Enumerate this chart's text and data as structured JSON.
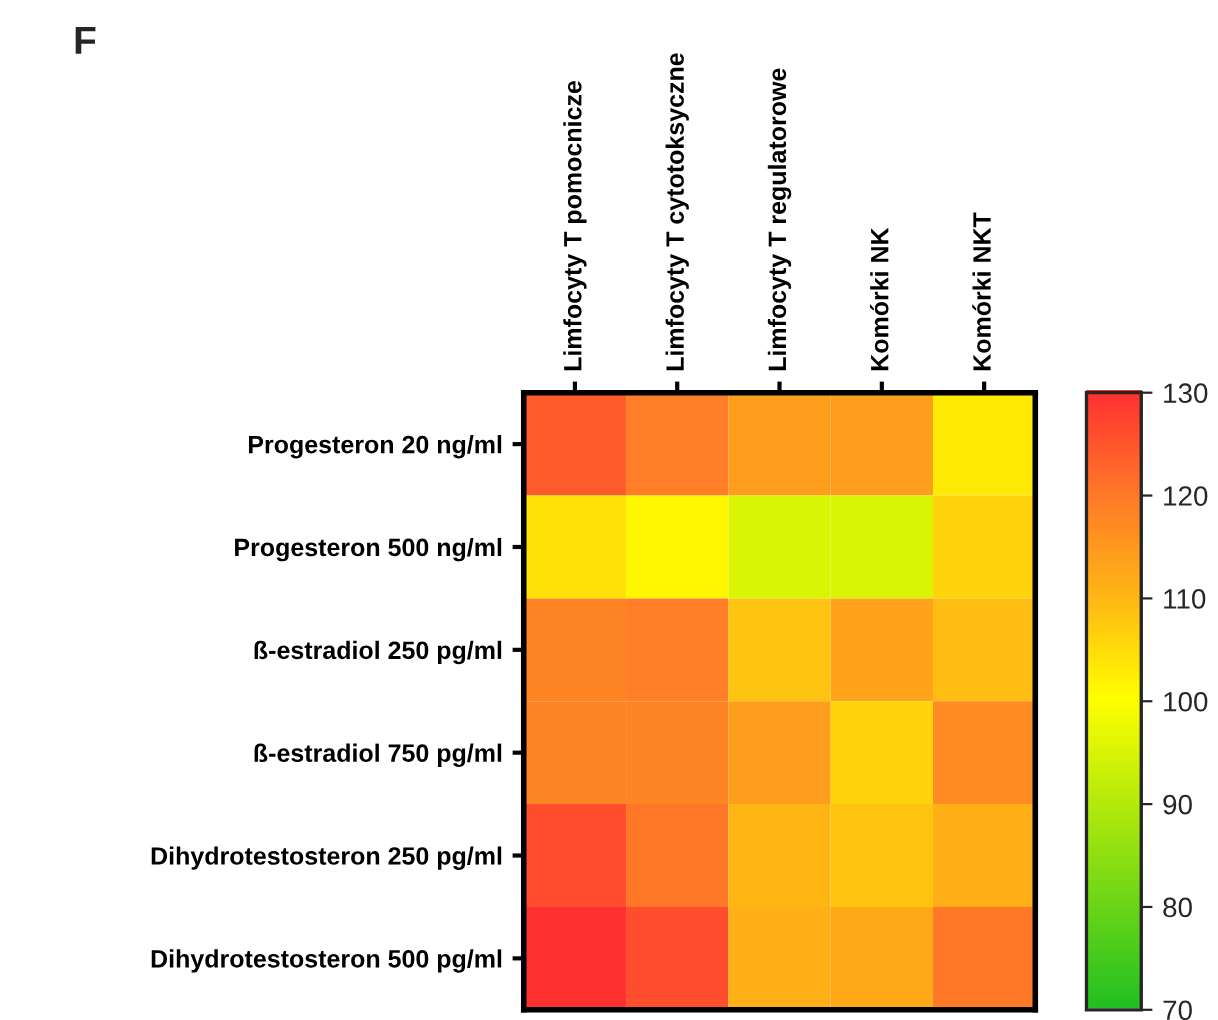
{
  "chart_data": {
    "type": "heatmap",
    "title": "F",
    "categories": [
      "Limfocyty T pomocnicze",
      "Limfocyty T cytotoksyczne",
      "Limfocyty T regulatorowe",
      "Komórki NK",
      "Komórki NKT"
    ],
    "y_categories": [
      "Progesteron 20 ng/ml",
      "Progesteron 500 ng/ml",
      "ß-estradiol 250 pg/ml",
      "ß-estradiol 750 pg/ml",
      "Dihydrotestosteron 250 pg/ml",
      "Dihydrotestosteron 500 pg/ml"
    ],
    "cells": [
      [
        124,
        119,
        114,
        114,
        103
      ],
      [
        104,
        101,
        95,
        95,
        106
      ],
      [
        118,
        119,
        108,
        113,
        109
      ],
      [
        118,
        118,
        114,
        106,
        117
      ],
      [
        126,
        120,
        110,
        108,
        111
      ],
      [
        130,
        126,
        111,
        112,
        120
      ]
    ],
    "clim": [
      70,
      130
    ],
    "cticks": [
      70,
      80,
      90,
      100,
      110,
      120,
      130
    ]
  }
}
